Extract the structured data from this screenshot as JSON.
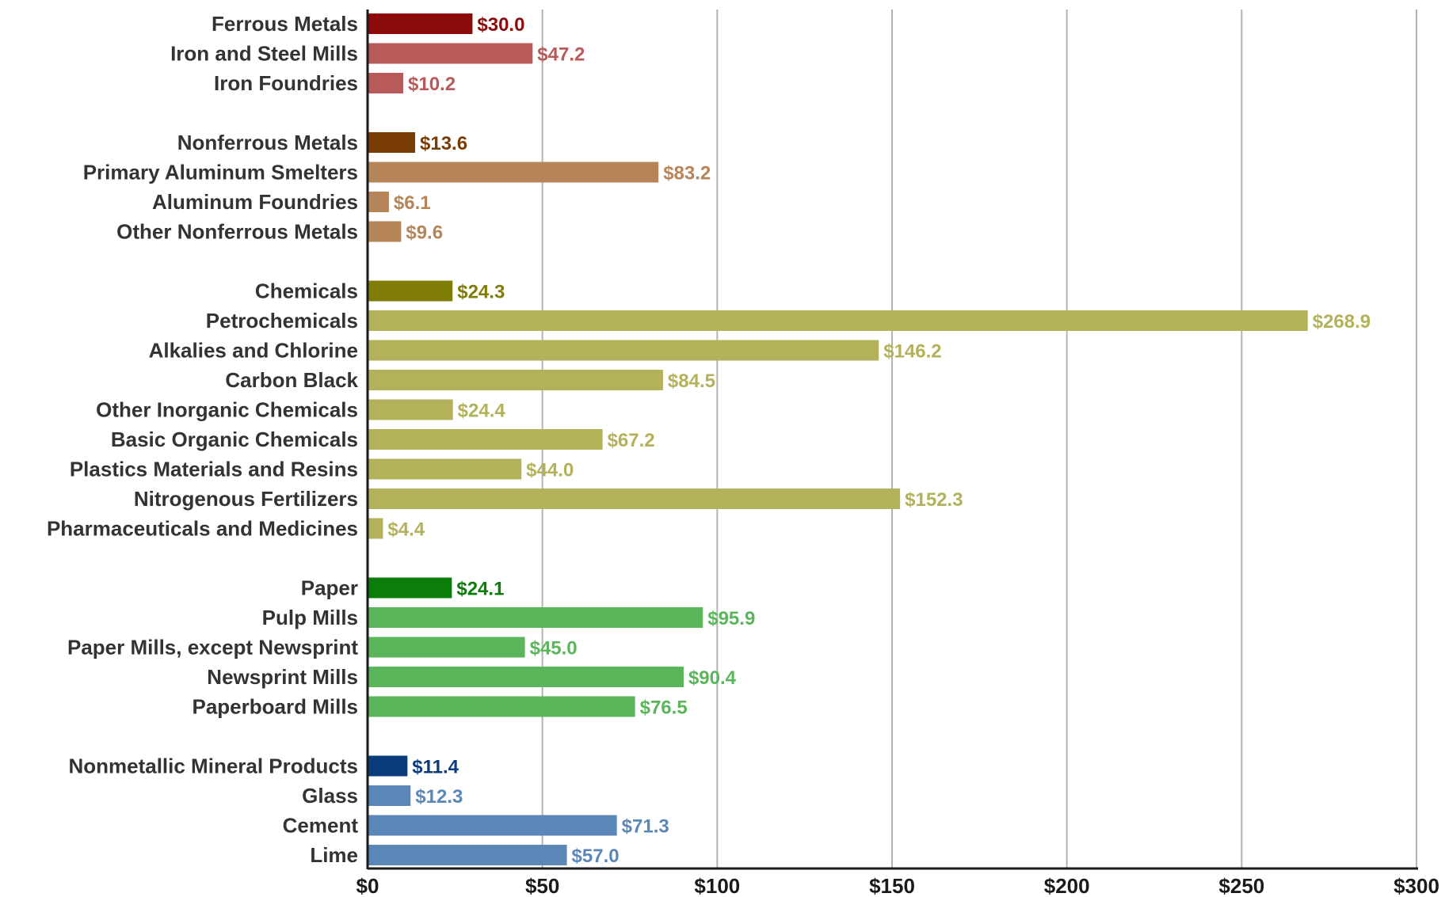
{
  "chart_data": {
    "type": "bar",
    "orientation": "horizontal",
    "xlim": [
      0,
      300
    ],
    "grid": true,
    "x_ticks": [
      "$0",
      "$50",
      "$100",
      "$150",
      "$200",
      "$250",
      "$300"
    ],
    "x_tick_values": [
      0,
      50,
      100,
      150,
      200,
      250,
      300
    ],
    "groups": [
      {
        "color": "#8b0a0a",
        "sub_color": "#b95a5a",
        "items": [
          {
            "label": "Ferrous Metals",
            "value": 30.0,
            "value_label": "$30.0",
            "header": true
          },
          {
            "label": "Iron and Steel Mills",
            "value": 47.2,
            "value_label": "$47.2"
          },
          {
            "label": "Iron Foundries",
            "value": 10.2,
            "value_label": "$10.2"
          }
        ]
      },
      {
        "color": "#7a3c05",
        "sub_color": "#b58458",
        "items": [
          {
            "label": "Nonferrous Metals",
            "value": 13.6,
            "value_label": "$13.6",
            "header": true
          },
          {
            "label": "Primary Aluminum Smelters",
            "value": 83.2,
            "value_label": "$83.2"
          },
          {
            "label": "Aluminum Foundries",
            "value": 6.1,
            "value_label": "$6.1"
          },
          {
            "label": "Other Nonferrous Metals",
            "value": 9.6,
            "value_label": "$9.6"
          }
        ]
      },
      {
        "color": "#7f7d05",
        "sub_color": "#b3b25b",
        "items": [
          {
            "label": "Chemicals",
            "value": 24.3,
            "value_label": "$24.3",
            "header": true
          },
          {
            "label": "Petrochemicals",
            "value": 268.9,
            "value_label": "$268.9"
          },
          {
            "label": "Alkalies and Chlorine",
            "value": 146.2,
            "value_label": "$146.2"
          },
          {
            "label": "Carbon Black",
            "value": 84.5,
            "value_label": "$84.5"
          },
          {
            "label": "Other Inorganic Chemicals",
            "value": 24.4,
            "value_label": "$24.4"
          },
          {
            "label": "Basic Organic Chemicals",
            "value": 67.2,
            "value_label": "$67.2"
          },
          {
            "label": "Plastics Materials and Resins",
            "value": 44.0,
            "value_label": "$44.0"
          },
          {
            "label": "Nitrogenous Fertilizers",
            "value": 152.3,
            "value_label": "$152.3"
          },
          {
            "label": "Pharmaceuticals and Medicines",
            "value": 4.4,
            "value_label": "$4.4"
          }
        ]
      },
      {
        "color": "#0a7d0a",
        "sub_color": "#5bb55b",
        "items": [
          {
            "label": "Paper",
            "value": 24.1,
            "value_label": "$24.1",
            "header": true
          },
          {
            "label": "Pulp Mills",
            "value": 95.9,
            "value_label": "$95.9"
          },
          {
            "label": "Paper Mills, except Newsprint",
            "value": 45.0,
            "value_label": "$45.0"
          },
          {
            "label": "Newsprint Mills",
            "value": 90.4,
            "value_label": "$90.4"
          },
          {
            "label": "Paperboard Mills",
            "value": 76.5,
            "value_label": "$76.5"
          }
        ]
      },
      {
        "color": "#0a3c7d",
        "sub_color": "#5b87b8",
        "items": [
          {
            "label": "Nonmetallic Mineral Products",
            "value": 11.4,
            "value_label": "$11.4",
            "header": true
          },
          {
            "label": "Glass",
            "value": 12.3,
            "value_label": "$12.3"
          },
          {
            "label": "Cement",
            "value": 71.3,
            "value_label": "$71.3"
          },
          {
            "label": "Lime",
            "value": 57.0,
            "value_label": "$57.0"
          }
        ]
      }
    ]
  }
}
